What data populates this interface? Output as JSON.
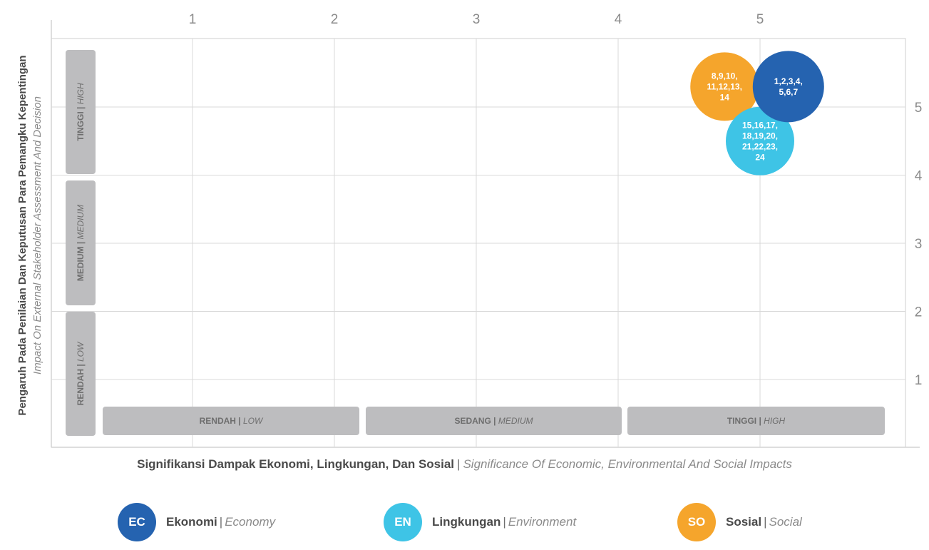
{
  "chart_data": {
    "type": "bubble-matrix",
    "xlabel": {
      "main": "Signifikansi Dampak Ekonomi, Lingkungan, Dan Sosial",
      "separator": "|",
      "sub": "Significance Of Economic, Environmental And Social Impacts"
    },
    "ylabel": {
      "main": "Pengaruh Pada Penilaian Dan Keputusan Para Pemangku Kepentingan",
      "sub": "Impact On  External Stakeholder  Assessment And Decision"
    },
    "x_ticks": [
      "1",
      "2",
      "3",
      "4",
      "5"
    ],
    "y_ticks": [
      "1",
      "2",
      "3",
      "4",
      "5"
    ],
    "x_bands": [
      {
        "main": "RENDAH",
        "sub": "LOW"
      },
      {
        "main": "SEDANG",
        "sub": "MEDIUM"
      },
      {
        "main": "TINGGI",
        "sub": "HIGH"
      }
    ],
    "y_bands": [
      {
        "main": "RENDAH",
        "sub": "LOW"
      },
      {
        "main": "MEDIUM",
        "sub": "MEDIUM"
      },
      {
        "main": "TINGGI",
        "sub": "HIGH"
      }
    ],
    "points": [
      {
        "series": "SO",
        "x": 4.75,
        "y": 5.3,
        "lines": [
          "8,9,10,",
          "11,12,13,",
          "14"
        ]
      },
      {
        "series": "EN",
        "x": 5.0,
        "y": 4.5,
        "lines": [
          "15,16,17,",
          "18,19,20,",
          "21,22,23,",
          "24"
        ]
      },
      {
        "series": "EC",
        "x": 5.2,
        "y": 5.3,
        "lines": [
          "1,2,3,4,",
          "5,6,7"
        ]
      }
    ],
    "series": [
      {
        "code": "EC",
        "name": "Ekonomi",
        "name_en": "Economy",
        "color": "#2563b0"
      },
      {
        "code": "EN",
        "name": "Lingkungan",
        "name_en": "Environment",
        "color": "#3ec4e6"
      },
      {
        "code": "SO",
        "name": "Sosial",
        "name_en": "Social",
        "color": "#f5a52c"
      }
    ]
  }
}
